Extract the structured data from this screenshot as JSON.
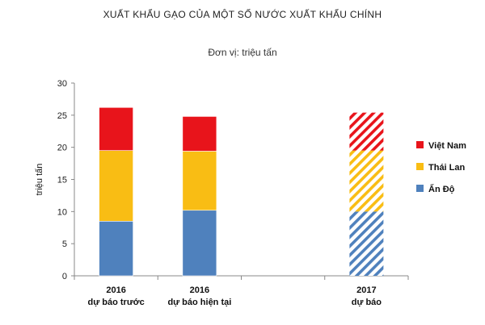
{
  "chart_data": {
    "type": "bar",
    "stacked": true,
    "title": "XUẤT KHẨU GẠO CỦA MỘT SỐ NƯỚC XUẤT KHẨU CHÍNH",
    "subtitle": "Đơn vị: triệu tấn",
    "ylabel": "triệu tấn",
    "ylim": [
      0,
      30
    ],
    "yticks": [
      0,
      5,
      10,
      15,
      20,
      25,
      30
    ],
    "grid": false,
    "legend_position": "right",
    "categories": [
      {
        "line1": "2016",
        "line2": "dự báo trước",
        "hatched": false
      },
      {
        "line1": "2016",
        "line2": "dự báo hiện tại",
        "hatched": false
      },
      {
        "line1": "",
        "line2": "",
        "hatched": false
      },
      {
        "line1": "2017",
        "line2": "dự báo",
        "hatched": true
      }
    ],
    "series": [
      {
        "name": "Ấn Độ",
        "color": "#4f81bd",
        "values": [
          8.5,
          10.2,
          null,
          10.0
        ]
      },
      {
        "name": "Thái Lan",
        "color": "#f9bd14",
        "values": [
          11.0,
          9.2,
          null,
          9.5
        ]
      },
      {
        "name": "Việt Nam",
        "color": "#e8141b",
        "values": [
          6.7,
          5.4,
          null,
          5.9
        ]
      }
    ]
  }
}
